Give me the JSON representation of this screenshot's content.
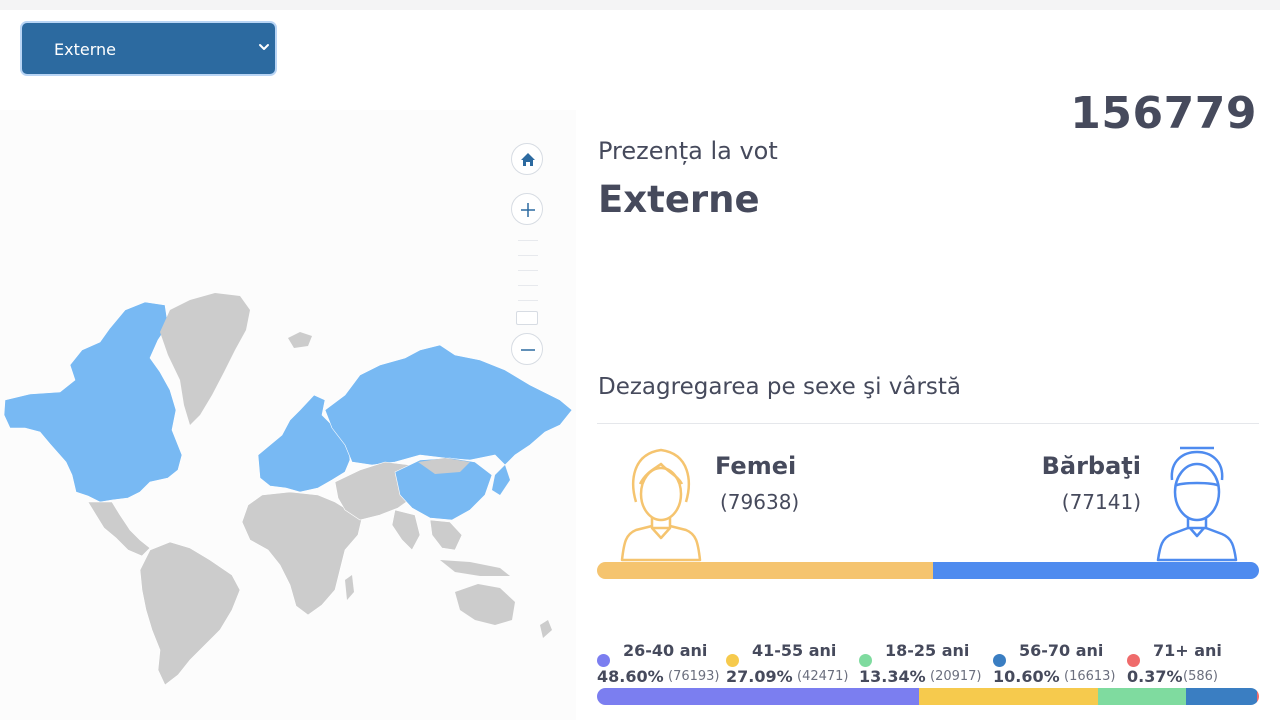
{
  "filter": {
    "selected": "Externe"
  },
  "header": {
    "total": "156779",
    "subtitle": "Prezența la vot",
    "region": "Externe"
  },
  "gender_section": {
    "title": "Dezagregarea pe sexe şi vârstă",
    "female": {
      "label": "Femei",
      "count": "(79638)",
      "value": 79638,
      "color": "#f5c46f"
    },
    "male": {
      "label": "Bărbaţi",
      "count": "(77141)",
      "value": 77141,
      "color": "#4e8bef"
    }
  },
  "age_groups": [
    {
      "label": "26-40 ani",
      "percent": "48.60%",
      "count": "(76193)",
      "value": 48.6,
      "color": "#7b7ef0"
    },
    {
      "label": "41-55 ani",
      "percent": "27.09%",
      "count": "(42471)",
      "value": 27.09,
      "color": "#f6ca4d"
    },
    {
      "label": "18-25 ani",
      "percent": "13.34%",
      "count": "(20917)",
      "value": 13.34,
      "color": "#7fdb9f"
    },
    {
      "label": "56-70 ani",
      "percent": "10.60%",
      "count": "(16613)",
      "value": 10.6,
      "color": "#3a7ec2"
    },
    {
      "label": "71+ ani",
      "percent": "0.37%",
      "count": "(586)",
      "value": 0.37,
      "color": "#ef6b6b"
    }
  ],
  "map": {
    "highlight_color": "#78b9f3",
    "base_color": "#cccccc",
    "controls": [
      "home-icon",
      "plus-icon",
      "minus-icon"
    ]
  }
}
